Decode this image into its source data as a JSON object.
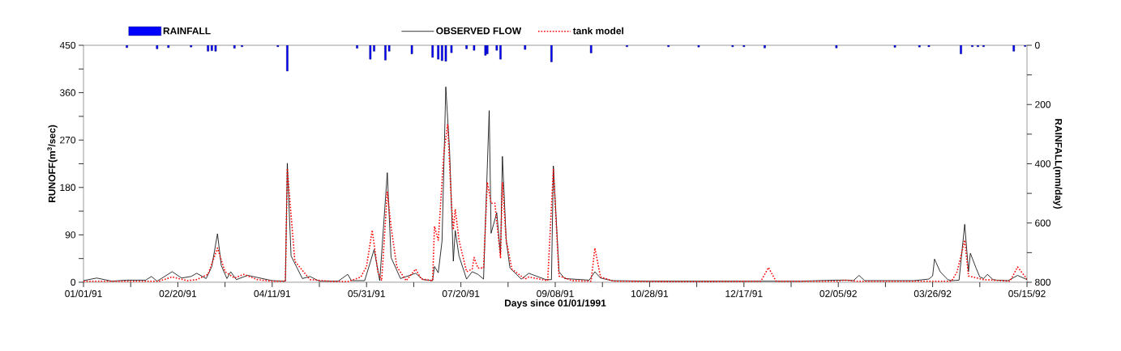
{
  "chart_data": {
    "type": "line",
    "xlabel": "Days since 01/01/1991",
    "ylabel": "RUNOFF(m$^{3}$/sec)",
    "y2label": "RAINFALL(mm/day)",
    "xlim": [
      "1991-01-01",
      "1992-05-15"
    ],
    "ylim": [
      0,
      450
    ],
    "y2lim": [
      800,
      0
    ],
    "xticks": [
      {
        "value": "1991-01-01",
        "label": "01/01/91"
      },
      {
        "value": "1991-01-26",
        "label": null
      },
      {
        "value": "1991-02-20",
        "label": "02/20/91"
      },
      {
        "value": "1991-03-17",
        "label": null
      },
      {
        "value": "1991-04-11",
        "label": "04/11/91"
      },
      {
        "value": "1991-05-06",
        "label": null
      },
      {
        "value": "1991-05-31",
        "label": "05/31/91"
      },
      {
        "value": "1991-06-25",
        "label": null
      },
      {
        "value": "1991-07-20",
        "label": "07/20/91"
      },
      {
        "value": "1991-08-14",
        "label": null
      },
      {
        "value": "1991-09-08",
        "label": "09/08/91"
      },
      {
        "value": "1991-10-03",
        "label": null
      },
      {
        "value": "1991-10-28",
        "label": "10/28/91"
      },
      {
        "value": "1991-11-22",
        "label": null
      },
      {
        "value": "1991-12-17",
        "label": "12/17/91"
      },
      {
        "value": "1992-01-11",
        "label": null
      },
      {
        "value": "1992-02-05",
        "label": "02/05/92"
      },
      {
        "value": "1992-03-01",
        "label": null
      },
      {
        "value": "1992-03-26",
        "label": "03/26/92"
      },
      {
        "value": "1992-04-20",
        "label": null
      },
      {
        "value": "1992-05-15",
        "label": "05/15/92"
      }
    ],
    "yticks": [
      0,
      {
        "value": 45,
        "label": null
      },
      90,
      {
        "value": 135,
        "label": null
      },
      180,
      {
        "value": 225,
        "label": null
      },
      270,
      {
        "value": 315,
        "label": null
      },
      360,
      {
        "value": 405,
        "label": null
      },
      450
    ],
    "y2ticks": [
      0,
      {
        "value": 100,
        "label": null
      },
      200,
      {
        "value": 300,
        "label": null
      },
      400,
      {
        "value": 500,
        "label": null
      },
      600,
      {
        "value": 700,
        "label": null
      },
      800
    ],
    "legend": "top",
    "series": [
      {
        "name": "RAINFALL",
        "type": "bar",
        "axis": "y2",
        "color": "#0000ff",
        "x": [
          "1991-01-24",
          "1991-02-09",
          "1991-02-15",
          "1991-02-27",
          "1991-03-08",
          "1991-03-10",
          "1991-03-12",
          "1991-03-22",
          "1991-03-26",
          "1991-04-14",
          "1991-04-19",
          "1991-05-26",
          "1991-06-02",
          "1991-06-04",
          "1991-06-10",
          "1991-06-12",
          "1991-06-24",
          "1991-07-05",
          "1991-07-08",
          "1991-07-10",
          "1991-07-12",
          "1991-07-15",
          "1991-07-23",
          "1991-07-27",
          "1991-08-02",
          "1991-08-03",
          "1991-08-08",
          "1991-08-10",
          "1991-08-23",
          "1991-09-06",
          "1991-09-27",
          "1991-10-16",
          "1991-11-07",
          "1991-11-23",
          "1991-12-11",
          "1991-12-17",
          "1991-12-28",
          "1992-02-04",
          "1992-03-06",
          "1992-03-19",
          "1992-03-24",
          "1992-04-10",
          "1992-04-16",
          "1992-04-19",
          "1992-04-22",
          "1992-05-08",
          "1992-05-14"
        ],
        "values": [
          8,
          12,
          8,
          6,
          20,
          18,
          20,
          10,
          5,
          5,
          87,
          10,
          47,
          20,
          50,
          20,
          29,
          41,
          47,
          52,
          54,
          25,
          12,
          17,
          34,
          29,
          17,
          47,
          14,
          56,
          26,
          5,
          5,
          6,
          5,
          5,
          9,
          9,
          7,
          6,
          5,
          29,
          5,
          5,
          5,
          20,
          4
        ]
      },
      {
        "name": "OBSERVED FLOW",
        "line_style": "solid",
        "color": "#000000",
        "x": [
          "1991-01-01",
          "1991-01-08",
          "1991-01-16",
          "1991-01-24",
          "1991-02-03",
          "1991-02-06",
          "1991-02-09",
          "1991-02-17",
          "1991-02-22",
          "1991-02-27",
          "1991-03-02",
          "1991-03-07",
          "1991-03-10",
          "1991-03-13",
          "1991-03-15",
          "1991-03-18",
          "1991-03-20",
          "1991-03-23",
          "1991-03-29",
          "1991-04-11",
          "1991-04-18",
          "1991-04-19",
          "1991-04-21",
          "1991-04-27",
          "1991-05-01",
          "1991-05-06",
          "1991-05-16",
          "1991-05-21",
          "1991-05-23",
          "1991-05-30",
          "1991-06-04",
          "1991-06-07",
          "1991-06-11",
          "1991-06-13",
          "1991-06-18",
          "1991-06-26",
          "1991-06-30",
          "1991-07-05",
          "1991-07-06",
          "1991-07-08",
          "1991-07-10",
          "1991-07-12",
          "1991-07-14",
          "1991-07-16",
          "1991-07-17",
          "1991-07-19",
          "1991-07-23",
          "1991-07-26",
          "1991-07-29",
          "1991-08-01",
          "1991-08-04",
          "1991-08-05",
          "1991-08-08",
          "1991-08-10",
          "1991-08-11",
          "1991-08-13",
          "1991-08-15",
          "1991-08-21",
          "1991-08-25",
          "1991-09-03",
          "1991-09-06",
          "1991-09-07",
          "1991-09-10",
          "1991-09-13",
          "1991-09-26",
          "1991-09-29",
          "1991-10-02",
          "1991-10-08",
          "1991-10-28",
          "1991-12-17",
          "1992-01-16",
          "1992-02-04",
          "1992-02-10",
          "1992-02-13",
          "1992-02-16",
          "1992-02-19",
          "1992-03-16",
          "1992-03-24",
          "1992-03-26",
          "1992-03-27",
          "1992-03-30",
          "1992-04-03",
          "1992-04-05",
          "1992-04-09",
          "1992-04-12",
          "1992-04-14",
          "1992-04-15",
          "1992-04-18",
          "1992-04-20",
          "1992-04-22",
          "1992-04-24",
          "1992-04-27",
          "1992-04-29",
          "1992-05-05",
          "1992-05-10",
          "1992-05-15"
        ],
        "values": [
          3,
          8,
          2,
          4,
          4,
          11,
          2,
          20,
          8,
          11,
          17,
          7,
          30,
          92,
          32,
          7,
          20,
          5,
          13,
          3,
          2,
          226,
          50,
          7,
          11,
          2,
          2,
          15,
          3,
          3,
          62,
          3,
          208,
          47,
          7,
          17,
          5,
          3,
          30,
          18,
          78,
          371,
          250,
          40,
          98,
          50,
          6,
          20,
          15,
          6,
          326,
          93,
          132,
          52,
          239,
          80,
          27,
          6,
          17,
          5,
          5,
          221,
          20,
          7,
          4,
          20,
          8,
          3,
          2,
          2,
          2,
          4,
          4,
          3,
          13,
          3,
          3,
          6,
          12,
          44,
          20,
          5,
          3,
          4,
          110,
          20,
          55,
          27,
          10,
          7,
          15,
          5,
          4,
          3,
          13,
          5
        ]
      },
      {
        "name": "tank model",
        "line_style": "dotted",
        "color": "#ff0000",
        "x": [
          "1991-01-01",
          "1991-02-10",
          "1991-02-17",
          "1991-02-25",
          "1991-03-02",
          "1991-03-08",
          "1991-03-13",
          "1991-03-17",
          "1991-03-22",
          "1991-03-27",
          "1991-04-03",
          "1991-04-11",
          "1991-04-18",
          "1991-04-19",
          "1991-04-23",
          "1991-05-01",
          "1991-05-11",
          "1991-05-21",
          "1991-05-28",
          "1991-05-31",
          "1991-06-03",
          "1991-06-06",
          "1991-06-08",
          "1991-06-11",
          "1991-06-13",
          "1991-06-16",
          "1991-06-21",
          "1991-06-26",
          "1991-06-29",
          "1991-07-05",
          "1991-07-06",
          "1991-07-08",
          "1991-07-09",
          "1991-07-11",
          "1991-07-13",
          "1991-07-15",
          "1991-07-16",
          "1991-07-17",
          "1991-07-19",
          "1991-07-23",
          "1991-07-26",
          "1991-07-27",
          "1991-07-29",
          "1991-08-01",
          "1991-08-03",
          "1991-08-05",
          "1991-08-07",
          "1991-08-08",
          "1991-08-10",
          "1991-08-11",
          "1991-08-13",
          "1991-08-16",
          "1991-08-23",
          "1991-08-25",
          "1991-09-04",
          "1991-09-07",
          "1991-09-10",
          "1991-09-17",
          "1991-09-27",
          "1991-09-29",
          "1991-10-02",
          "1991-10-09",
          "1991-11-17",
          "1991-12-26",
          "1991-12-30",
          "1992-01-03",
          "1992-02-05",
          "1992-02-08",
          "1992-02-15",
          "1992-04-05",
          "1992-04-08",
          "1992-04-12",
          "1992-04-14",
          "1992-04-22",
          "1992-05-06",
          "1992-05-10",
          "1992-05-15"
        ],
        "values": [
          2,
          2,
          10,
          3,
          5,
          15,
          65,
          20,
          8,
          15,
          5,
          2,
          2,
          216,
          40,
          5,
          2,
          1,
          10,
          30,
          99,
          20,
          3,
          171,
          105,
          30,
          3,
          25,
          6,
          3,
          106,
          80,
          134,
          247,
          300,
          150,
          100,
          139,
          80,
          20,
          25,
          47,
          27,
          27,
          190,
          150,
          150,
          115,
          47,
          190,
          80,
          25,
          6,
          10,
          3,
          214,
          12,
          3,
          2,
          65,
          10,
          2,
          1,
          2,
          28,
          2,
          2,
          4,
          2,
          2,
          20,
          80,
          12,
          5,
          2,
          29,
          6
        ]
      }
    ]
  }
}
